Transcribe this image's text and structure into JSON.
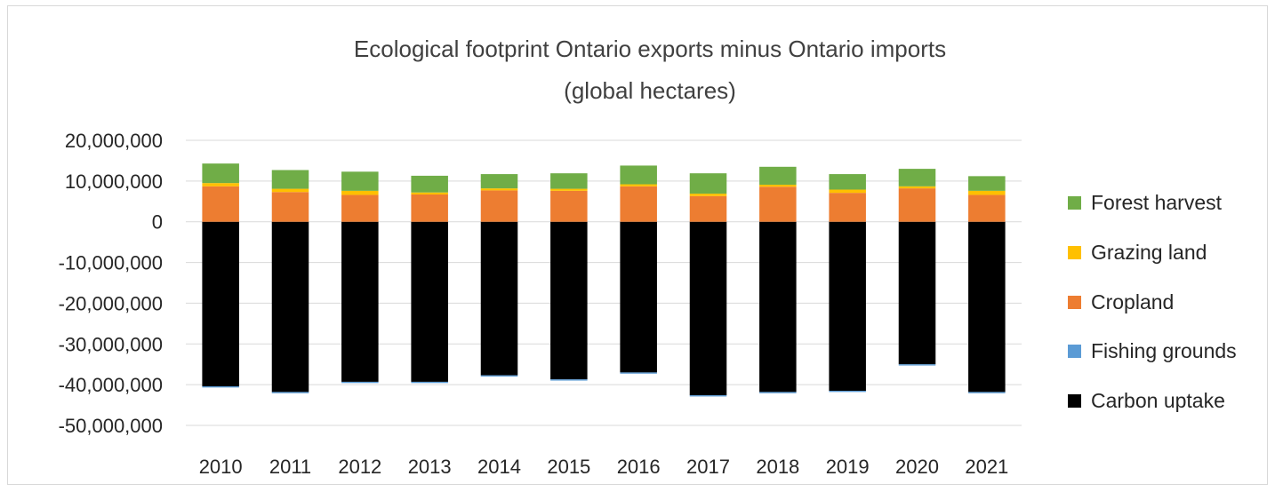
{
  "chart_data": {
    "type": "bar",
    "stacked": true,
    "title": [
      "Ecological footprint Ontario exports minus Ontario imports",
      "(global hectares)"
    ],
    "xlabel": "",
    "ylabel": "",
    "categories": [
      "2010",
      "2011",
      "2012",
      "2013",
      "2014",
      "2015",
      "2016",
      "2017",
      "2018",
      "2019",
      "2020",
      "2021"
    ],
    "ylim": [
      -50000000,
      20000000
    ],
    "yticks": [
      20000000,
      10000000,
      0,
      -10000000,
      -20000000,
      -30000000,
      -40000000,
      -50000000
    ],
    "ytick_labels": [
      "20,000,000",
      "10,000,000",
      "0",
      "-10,000,000",
      "-20,000,000",
      "-30,000,000",
      "-40,000,000",
      "-50,000,000"
    ],
    "grid": true,
    "legend_position": "right",
    "series": [
      {
        "name": "Carbon uptake",
        "color": "#000000",
        "values": [
          -40400000,
          -41800000,
          -39300000,
          -39300000,
          -37700000,
          -38700000,
          -37000000,
          -42600000,
          -41800000,
          -41500000,
          -35000000,
          -41800000
        ]
      },
      {
        "name": "Fishing grounds",
        "color": "#5b9bd5",
        "values": [
          -300000,
          -300000,
          -300000,
          -300000,
          -300000,
          -300000,
          -300000,
          -300000,
          -300000,
          -300000,
          -300000,
          -300000
        ]
      },
      {
        "name": "Cropland",
        "color": "#ed7d31",
        "values": [
          8700000,
          7300000,
          6600000,
          6700000,
          7700000,
          7600000,
          8700000,
          6300000,
          8600000,
          7100000,
          8200000,
          6600000
        ]
      },
      {
        "name": "Grazing land",
        "color": "#ffc000",
        "values": [
          800000,
          800000,
          1000000,
          500000,
          500000,
          500000,
          500000,
          600000,
          500000,
          800000,
          500000,
          1000000
        ]
      },
      {
        "name": "Forest harvest",
        "color": "#70ad47",
        "values": [
          4800000,
          4600000,
          4700000,
          4100000,
          3500000,
          3800000,
          4600000,
          5000000,
          4400000,
          3800000,
          4300000,
          3600000
        ]
      }
    ],
    "legend_order": [
      "Forest harvest",
      "Grazing land",
      "Cropland",
      "Fishing grounds",
      "Carbon uptake"
    ]
  }
}
